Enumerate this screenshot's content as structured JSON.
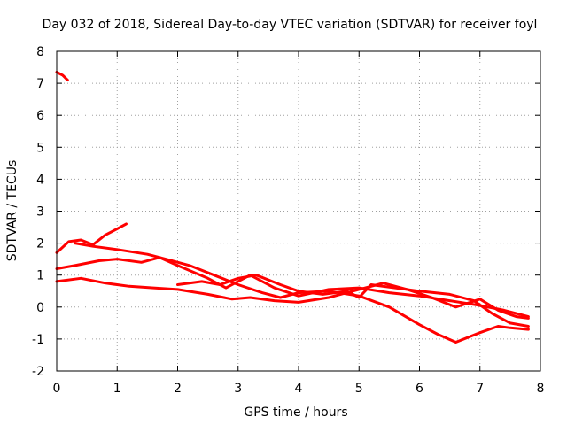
{
  "chart_data": {
    "type": "line",
    "title": "Day 032 of 2018, Sidereal Day-to-day VTEC variation (SDTVAR) for receiver foyl",
    "xlabel": "GPS time / hours",
    "ylabel": "SDTVAR / TECUs",
    "xlim": [
      0,
      8
    ],
    "ylim": [
      -2,
      8
    ],
    "xticks": [
      0,
      1,
      2,
      3,
      4,
      5,
      6,
      7,
      8
    ],
    "yticks": [
      -2,
      -1,
      0,
      1,
      2,
      3,
      4,
      5,
      6,
      7,
      8
    ],
    "xtick_labels": [
      "0",
      "1",
      "2",
      "3",
      "4",
      "5",
      "6",
      "7",
      "8"
    ],
    "ytick_labels": [
      "-2",
      "-1",
      "0",
      "1",
      "2",
      "3",
      "4",
      "5",
      "6",
      "7",
      "8"
    ],
    "grid": true,
    "color": "#ff0000",
    "series": [
      {
        "name": "track-a",
        "x": [
          0.0,
          0.1,
          0.18
        ],
        "y": [
          7.35,
          7.25,
          7.1
        ]
      },
      {
        "name": "track-b",
        "x": [
          0.0,
          0.2,
          0.4,
          0.6,
          0.8,
          1.0,
          1.15
        ],
        "y": [
          1.7,
          2.05,
          2.1,
          1.95,
          2.25,
          2.45,
          2.6
        ]
      },
      {
        "name": "track-c",
        "x": [
          0.3,
          0.6,
          1.0,
          1.5,
          1.8,
          2.2,
          2.6,
          3.0,
          3.4,
          3.7,
          4.0,
          4.5,
          5.0,
          5.5,
          6.0,
          6.3,
          6.6,
          7.0,
          7.3,
          7.5,
          7.8
        ],
        "y": [
          2.0,
          1.9,
          1.8,
          1.65,
          1.5,
          1.3,
          1.0,
          0.7,
          0.45,
          0.3,
          0.45,
          0.5,
          0.35,
          0.0,
          -0.55,
          -0.85,
          -1.1,
          -0.8,
          -0.6,
          -0.65,
          -0.7
        ]
      },
      {
        "name": "track-d",
        "x": [
          0.0,
          0.3,
          0.7,
          1.0,
          1.4,
          1.7,
          2.0,
          2.5,
          2.8,
          3.2,
          3.6,
          4.0,
          4.5,
          5.0,
          5.5,
          6.0,
          6.5,
          7.0,
          7.4,
          7.8
        ],
        "y": [
          1.2,
          1.3,
          1.45,
          1.5,
          1.4,
          1.55,
          1.3,
          0.9,
          0.6,
          1.0,
          0.6,
          0.35,
          0.55,
          0.6,
          0.45,
          0.35,
          0.2,
          0.05,
          -0.1,
          -0.3
        ]
      },
      {
        "name": "track-e",
        "x": [
          0.0,
          0.4,
          0.8,
          1.2,
          1.6,
          2.0,
          2.5,
          2.9,
          3.2,
          3.6,
          4.0,
          4.5,
          5.0,
          5.4,
          5.8,
          6.2,
          6.6,
          7.0,
          7.3,
          7.6,
          7.8
        ],
        "y": [
          0.8,
          0.9,
          0.75,
          0.65,
          0.6,
          0.55,
          0.4,
          0.25,
          0.3,
          0.2,
          0.15,
          0.3,
          0.55,
          0.75,
          0.55,
          0.3,
          0.0,
          0.25,
          -0.1,
          -0.3,
          -0.35
        ]
      },
      {
        "name": "track-f",
        "x": [
          2.0,
          2.4,
          2.7,
          3.0,
          3.3,
          3.7,
          4.0,
          4.4,
          4.8,
          5.0,
          5.2,
          5.6,
          6.0,
          6.5,
          6.9,
          7.2,
          7.5,
          7.8
        ],
        "y": [
          0.7,
          0.8,
          0.7,
          0.9,
          1.0,
          0.7,
          0.5,
          0.4,
          0.5,
          0.3,
          0.7,
          0.6,
          0.5,
          0.4,
          0.2,
          -0.2,
          -0.5,
          -0.6
        ]
      }
    ]
  }
}
